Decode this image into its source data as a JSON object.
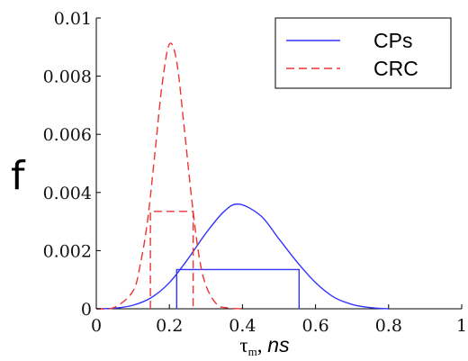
{
  "chart_data": {
    "type": "line",
    "xlabel": {
      "symbol": "τ",
      "sub": "m",
      "unit": "ns"
    },
    "ylabel": "f",
    "xlim": [
      0,
      1
    ],
    "ylim": [
      0,
      0.01
    ],
    "xticks": [
      0,
      0.2,
      0.4,
      0.6,
      0.8,
      1
    ],
    "xtick_labels": [
      "0",
      "0.2",
      "0.4",
      "0.6",
      "0.8",
      "1"
    ],
    "yticks": [
      0,
      0.002,
      0.004,
      0.006,
      0.008,
      0.01
    ],
    "ytick_labels": [
      "0",
      "0.002",
      "0.004",
      "0.006",
      "0.008",
      "0.01"
    ],
    "legend_position": "top-right",
    "series": [
      {
        "name": "CPs",
        "color": "#3333ff",
        "line_style": "solid",
        "x": [
          0.0,
          0.05,
          0.1,
          0.15,
          0.2,
          0.25,
          0.3,
          0.35,
          0.39,
          0.45,
          0.5,
          0.55,
          0.6,
          0.65,
          0.7,
          0.75,
          0.8
        ],
        "values": [
          0.0,
          2e-05,
          0.00012,
          0.00038,
          0.0009,
          0.0017,
          0.0026,
          0.00335,
          0.0036,
          0.0032,
          0.0024,
          0.0016,
          0.0009,
          0.0004,
          0.00015,
          4e-05,
          0.0
        ],
        "width_box": {
          "x_left": 0.22,
          "x_right": 0.555,
          "y": 0.00135
        }
      },
      {
        "name": "CRC",
        "color": "#ee3333",
        "line_style": "dashed",
        "x": [
          0.0,
          0.05,
          0.1,
          0.12,
          0.14,
          0.16,
          0.18,
          0.2,
          0.22,
          0.24,
          0.26,
          0.28,
          0.3,
          0.33,
          0.36,
          0.4
        ],
        "values": [
          0.0,
          5e-05,
          0.0006,
          0.0015,
          0.003,
          0.0053,
          0.0077,
          0.0091,
          0.0085,
          0.0063,
          0.0039,
          0.0019,
          0.0008,
          0.00015,
          3e-05,
          0.0
        ],
        "width_box": {
          "x_left": 0.148,
          "x_right": 0.265,
          "y": 0.00335
        }
      }
    ],
    "grid": false
  }
}
